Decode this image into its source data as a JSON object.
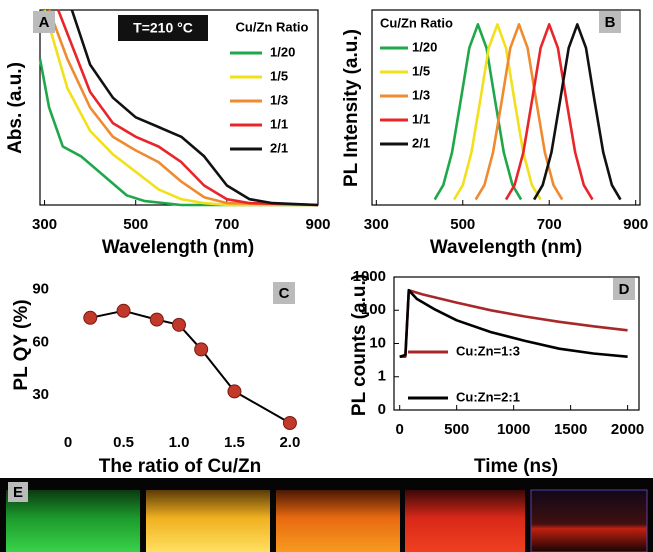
{
  "chart_data": [
    {
      "type": "line",
      "panel": "A",
      "annotation": "T=210 °C",
      "legend_title": "Cu/Zn Ratio",
      "x_label": "Wavelength (nm)",
      "y_label": "Abs. (a.u.)",
      "xlim": [
        290,
        900
      ],
      "xticks": [
        300,
        500,
        700,
        900
      ],
      "ylim": [
        0,
        1
      ],
      "series": [
        {
          "name": "1/20",
          "color": "#1fa74a",
          "x": [
            290,
            310,
            340,
            380,
            430,
            480,
            520,
            600,
            900
          ],
          "values": [
            0.75,
            0.5,
            0.3,
            0.25,
            0.15,
            0.05,
            0.02,
            0,
            0
          ]
        },
        {
          "name": "1/5",
          "color": "#f2e01a",
          "x": [
            300,
            350,
            400,
            450,
            500,
            550,
            600,
            650,
            700,
            900
          ],
          "values": [
            1.0,
            0.6,
            0.38,
            0.26,
            0.17,
            0.08,
            0.03,
            0.01,
            0,
            0
          ]
        },
        {
          "name": "1/3",
          "color": "#f08a30",
          "x": [
            310,
            350,
            400,
            450,
            500,
            550,
            600,
            650,
            700,
            900
          ],
          "values": [
            1.0,
            0.75,
            0.5,
            0.35,
            0.28,
            0.22,
            0.12,
            0.04,
            0.01,
            0
          ]
        },
        {
          "name": "1/1",
          "color": "#e8262a",
          "x": [
            330,
            400,
            450,
            500,
            550,
            600,
            650,
            700,
            750,
            900
          ],
          "values": [
            1.0,
            0.58,
            0.42,
            0.35,
            0.3,
            0.22,
            0.1,
            0.03,
            0.01,
            0
          ]
        },
        {
          "name": "2/1",
          "color": "#111111",
          "x": [
            360,
            400,
            450,
            500,
            550,
            600,
            650,
            700,
            750,
            800,
            900
          ],
          "values": [
            1.0,
            0.72,
            0.55,
            0.45,
            0.4,
            0.35,
            0.25,
            0.1,
            0.03,
            0.01,
            0
          ]
        }
      ]
    },
    {
      "type": "line",
      "panel": "B",
      "legend_title": "Cu/Zn Ratio",
      "x_label": "Wavelength (nm)",
      "y_label": "PL Intensity (a.u.)",
      "xlim": [
        290,
        910
      ],
      "xticks": [
        300,
        500,
        700,
        900
      ],
      "ylim": [
        0,
        1.08
      ],
      "series": [
        {
          "name": "1/20",
          "color": "#1fa74a",
          "x": [
            435,
            455,
            475,
            495,
            515,
            535,
            555,
            575,
            595,
            615,
            635
          ],
          "values": [
            0.03,
            0.11,
            0.29,
            0.575,
            0.87,
            1,
            0.87,
            0.575,
            0.29,
            0.11,
            0.03
          ]
        },
        {
          "name": "1/5",
          "color": "#f2e01a",
          "x": [
            480,
            500,
            520,
            540,
            560,
            580,
            600,
            620,
            640,
            660,
            680
          ],
          "values": [
            0.03,
            0.11,
            0.29,
            0.575,
            0.87,
            1,
            0.87,
            0.575,
            0.29,
            0.11,
            0.03
          ]
        },
        {
          "name": "1/3",
          "color": "#f08a30",
          "x": [
            530,
            550,
            570,
            590,
            610,
            630,
            650,
            670,
            690,
            710,
            730
          ],
          "values": [
            0.03,
            0.11,
            0.29,
            0.575,
            0.87,
            1,
            0.87,
            0.575,
            0.29,
            0.11,
            0.03
          ]
        },
        {
          "name": "1/1",
          "color": "#e8262a",
          "x": [
            600,
            620,
            640,
            660,
            680,
            700,
            720,
            740,
            760,
            780,
            800
          ],
          "values": [
            0.03,
            0.11,
            0.29,
            0.575,
            0.87,
            1,
            0.87,
            0.575,
            0.29,
            0.11,
            0.03
          ]
        },
        {
          "name": "2/1",
          "color": "#111111",
          "x": [
            665,
            685,
            705,
            725,
            745,
            765,
            785,
            805,
            825,
            845,
            865
          ],
          "values": [
            0.03,
            0.11,
            0.29,
            0.575,
            0.87,
            1,
            0.87,
            0.575,
            0.29,
            0.11,
            0.03
          ]
        }
      ]
    },
    {
      "type": "line",
      "panel": "C",
      "markers": true,
      "x_label": "The ratio of Cu/Zn",
      "y_label": "PL QY (%)",
      "xlim": [
        -0.1,
        2.1
      ],
      "xticks": [
        0,
        0.5,
        {
          "value": 1,
          "label": "1.0"
        },
        1.5,
        {
          "value": 2,
          "label": "2.0"
        }
      ],
      "ylim": [
        10,
        95
      ],
      "yticks": [
        30,
        60,
        90
      ],
      "series": [
        {
          "color": "#c0392b",
          "x": [
            0.2,
            0.5,
            0.8,
            1.0,
            1.2,
            1.5,
            2.0
          ],
          "values": [
            74,
            78,
            73,
            70,
            56,
            32,
            14
          ]
        }
      ]
    },
    {
      "type": "line",
      "panel": "D",
      "log_y": true,
      "x_label": "Time (ns)",
      "y_label": "PL counts (a.u.)",
      "xlim": [
        -50,
        2100
      ],
      "xticks": [
        0,
        500,
        1000,
        1500,
        2000
      ],
      "ylim": [
        0.1,
        1000
      ],
      "yticks": [
        {
          "value": 0.1,
          "label": "0"
        },
        1,
        10,
        100,
        1000
      ],
      "series": [
        {
          "name": "Cu:Zn=1:3",
          "color": "#a8282a",
          "x": [
            0,
            50,
            80,
            200,
            500,
            800,
            1100,
            1400,
            1700,
            2000
          ],
          "values": [
            4,
            4,
            400,
            300,
            170,
            100,
            65,
            45,
            33,
            25
          ]
        },
        {
          "name": "Cu:Zn=2:1",
          "color": "#000000",
          "x": [
            0,
            50,
            80,
            150,
            300,
            500,
            800,
            1100,
            1400,
            1700,
            2000
          ],
          "values": [
            4,
            4.5,
            400,
            220,
            110,
            50,
            22,
            12,
            7,
            5,
            4
          ]
        }
      ]
    }
  ],
  "photo": {
    "label": "E"
  }
}
